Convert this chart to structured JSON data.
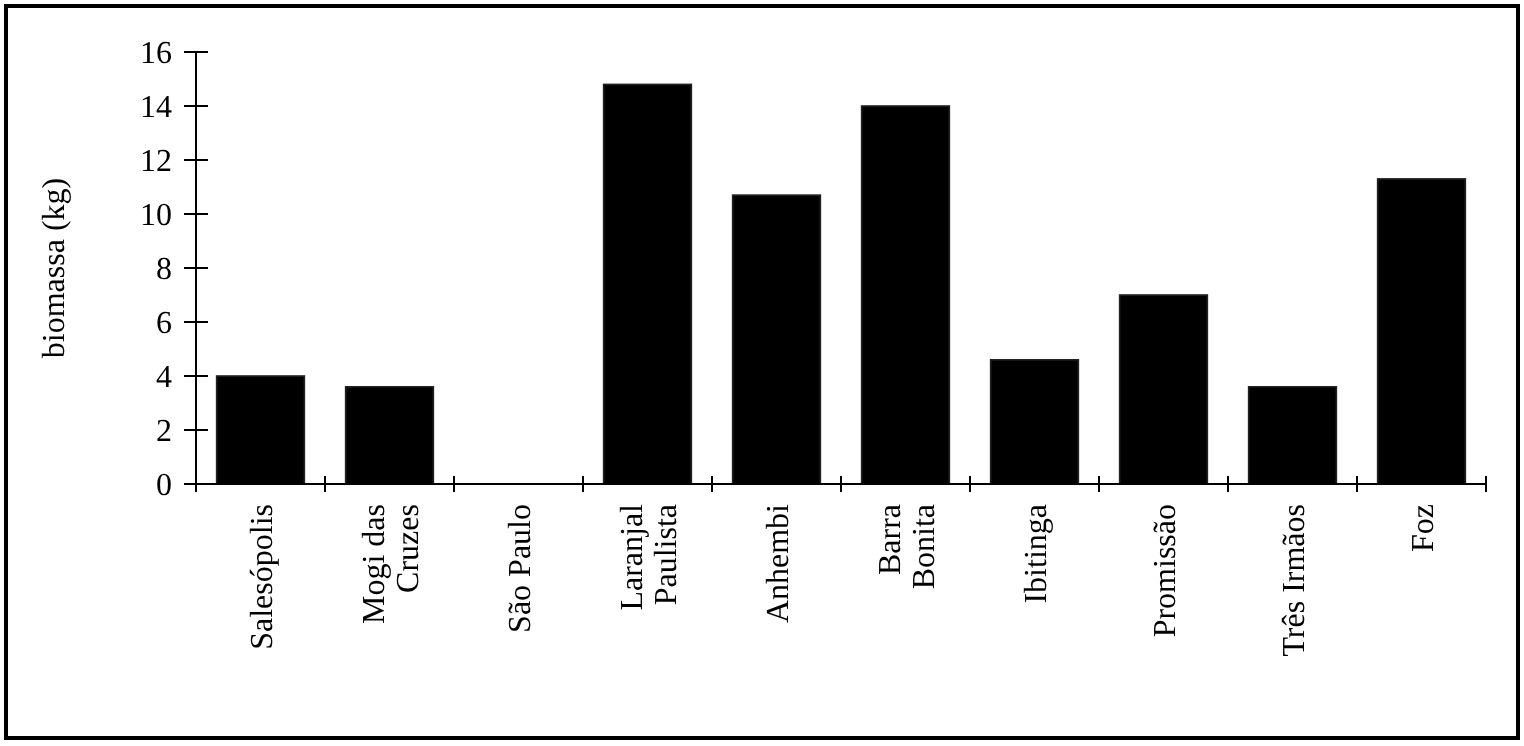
{
  "chart_data": {
    "type": "bar",
    "ylabel": "biomassa (kg)",
    "categories": [
      "Salesópolis",
      "Mogi das\nCruzes",
      "São Paulo",
      "Laranjal\nPaulista",
      "Anhembi",
      "Barra\nBonita",
      "Ibitinga",
      "Promissão",
      "Três Irmãos",
      "Foz"
    ],
    "values": [
      4.0,
      3.6,
      0,
      14.8,
      10.7,
      14.0,
      4.6,
      7.0,
      3.6,
      11.3
    ],
    "color": "#000000",
    "ylim": [
      0,
      16
    ],
    "yticks": [
      0,
      2,
      4,
      6,
      8,
      10,
      12,
      14,
      16
    ],
    "grid": false
  }
}
